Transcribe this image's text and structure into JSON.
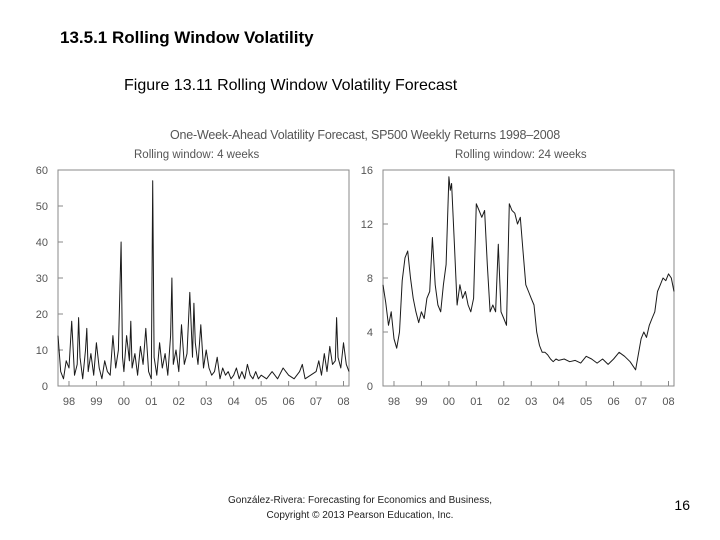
{
  "slide": {
    "section_title": "13.5.1  Rolling Window Volatility",
    "figure_caption": "Figure 13.11  Rolling Window Volatility Forecast",
    "footer_line1": "González-Rivera: Forecasting for Economics and Business,",
    "footer_line2": "Copyright © 2013 Pearson Education, Inc.",
    "page_number": "16"
  },
  "colors": {
    "axis": "#888888",
    "line": "#1a1a1a",
    "label": "#555555"
  },
  "chart_data": {
    "title": "One-Week-Ahead Volatility Forecast, SP500 Weekly Returns 1998–2008",
    "panels": [
      {
        "type": "line",
        "subtitle": "Rolling window: 4 weeks",
        "xlabel": "",
        "ylabel": "",
        "xlim": [
          1997.6,
          2008.2
        ],
        "ylim": [
          0,
          60
        ],
        "yticks": [
          0,
          10,
          20,
          30,
          40,
          50,
          60
        ],
        "ytick_labels": [
          "0",
          "10",
          "20",
          "30",
          "40",
          "50",
          "60"
        ],
        "xticks": [
          1998,
          1999,
          2000,
          2001,
          2002,
          2003,
          2004,
          2005,
          2006,
          2007,
          2008
        ],
        "xtick_labels": [
          "98",
          "99",
          "00",
          "01",
          "02",
          "03",
          "04",
          "05",
          "06",
          "07",
          "08"
        ],
        "x": [
          1997.6,
          1997.7,
          1997.8,
          1997.9,
          1998.0,
          1998.1,
          1998.2,
          1998.3,
          1998.35,
          1998.4,
          1998.5,
          1998.6,
          1998.65,
          1998.7,
          1998.8,
          1998.9,
          1999.0,
          1999.1,
          1999.2,
          1999.3,
          1999.4,
          1999.5,
          1999.6,
          1999.7,
          1999.8,
          1999.9,
          1999.95,
          2000.0,
          2000.1,
          2000.2,
          2000.25,
          2000.3,
          2000.4,
          2000.5,
          2000.6,
          2000.7,
          2000.8,
          2000.9,
          2001.0,
          2001.05,
          2001.1,
          2001.2,
          2001.3,
          2001.4,
          2001.5,
          2001.6,
          2001.7,
          2001.75,
          2001.8,
          2001.9,
          2002.0,
          2002.1,
          2002.2,
          2002.3,
          2002.4,
          2002.5,
          2002.55,
          2002.6,
          2002.7,
          2002.8,
          2002.9,
          2003.0,
          2003.1,
          2003.2,
          2003.3,
          2003.4,
          2003.5,
          2003.6,
          2003.7,
          2003.8,
          2003.9,
          2004.0,
          2004.1,
          2004.2,
          2004.3,
          2004.4,
          2004.5,
          2004.6,
          2004.7,
          2004.8,
          2004.9,
          2005.0,
          2005.2,
          2005.4,
          2005.6,
          2005.8,
          2006.0,
          2006.2,
          2006.4,
          2006.5,
          2006.6,
          2006.8,
          2007.0,
          2007.1,
          2007.2,
          2007.3,
          2007.4,
          2007.5,
          2007.6,
          2007.7,
          2007.75,
          2007.8,
          2007.9,
          2008.0,
          2008.1,
          2008.2
        ],
        "y": [
          14,
          4,
          2,
          7,
          5,
          18,
          3,
          6,
          19,
          8,
          2,
          10,
          16,
          4,
          9,
          3,
          12,
          5,
          2,
          7,
          4,
          3,
          14,
          5,
          10,
          40,
          8,
          4,
          14,
          7,
          18,
          5,
          9,
          3,
          11,
          6,
          16,
          4,
          2,
          57,
          8,
          3,
          12,
          5,
          9,
          3,
          14,
          30,
          6,
          10,
          4,
          17,
          6,
          9,
          26,
          8,
          23,
          12,
          6,
          17,
          5,
          10,
          5,
          3,
          4,
          8,
          2,
          5,
          3,
          4,
          2,
          3,
          5,
          2,
          4,
          2,
          6,
          3,
          2,
          4,
          2,
          3,
          2,
          4,
          2,
          5,
          3,
          2,
          4,
          6,
          2,
          3,
          4,
          7,
          3,
          9,
          4,
          11,
          6,
          7,
          19,
          8,
          5,
          12,
          6,
          4
        ]
      },
      {
        "type": "line",
        "subtitle": "Rolling window: 24 weeks",
        "xlabel": "",
        "ylabel": "",
        "xlim": [
          1997.6,
          2008.2
        ],
        "ylim": [
          0,
          16
        ],
        "yticks": [
          0,
          4,
          8,
          12,
          16
        ],
        "ytick_labels": [
          "0",
          "4",
          "8",
          "12",
          "16"
        ],
        "xticks": [
          1998,
          1999,
          2000,
          2001,
          2002,
          2003,
          2004,
          2005,
          2006,
          2007,
          2008
        ],
        "xtick_labels": [
          "98",
          "99",
          "00",
          "01",
          "02",
          "03",
          "04",
          "05",
          "06",
          "07",
          "08"
        ],
        "x": [
          1997.6,
          1997.7,
          1997.8,
          1997.9,
          1998.0,
          1998.1,
          1998.2,
          1998.3,
          1998.4,
          1998.5,
          1998.6,
          1998.7,
          1998.8,
          1998.9,
          1999.0,
          1999.1,
          1999.2,
          1999.3,
          1999.4,
          1999.5,
          1999.6,
          1999.7,
          1999.8,
          1999.9,
          2000.0,
          2000.05,
          2000.1,
          2000.2,
          2000.3,
          2000.4,
          2000.5,
          2000.6,
          2000.7,
          2000.8,
          2000.9,
          2001.0,
          2001.1,
          2001.2,
          2001.3,
          2001.4,
          2001.5,
          2001.6,
          2001.7,
          2001.8,
          2001.9,
          2002.0,
          2002.1,
          2002.2,
          2002.3,
          2002.4,
          2002.5,
          2002.6,
          2002.7,
          2002.8,
          2002.9,
          2003.0,
          2003.1,
          2003.2,
          2003.3,
          2003.4,
          2003.5,
          2003.6,
          2003.7,
          2003.8,
          2003.9,
          2004.0,
          2004.2,
          2004.4,
          2004.6,
          2004.8,
          2005.0,
          2005.2,
          2005.4,
          2005.6,
          2005.8,
          2006.0,
          2006.2,
          2006.4,
          2006.6,
          2006.8,
          2007.0,
          2007.1,
          2007.2,
          2007.3,
          2007.4,
          2007.5,
          2007.6,
          2007.7,
          2007.8,
          2007.9,
          2008.0,
          2008.1,
          2008.2
        ],
        "y": [
          7.5,
          6.2,
          4.5,
          5.5,
          3.5,
          2.8,
          4,
          7.8,
          9.5,
          10,
          8,
          6.5,
          5.5,
          4.7,
          5.5,
          5,
          6.5,
          7,
          11,
          7.5,
          6,
          5.5,
          7.5,
          9,
          15.5,
          14.5,
          15,
          10.5,
          6,
          7.5,
          6.5,
          7,
          6,
          5.5,
          6.5,
          13.5,
          13,
          12.5,
          13,
          9,
          5.5,
          6,
          5.5,
          10.5,
          5.5,
          5,
          4.5,
          13.5,
          13,
          12.8,
          12,
          12.5,
          10,
          7.5,
          7,
          6.5,
          6,
          4,
          3,
          2.5,
          2.5,
          2.3,
          2,
          1.8,
          2,
          1.9,
          2,
          1.8,
          1.9,
          1.7,
          2.2,
          2,
          1.7,
          2,
          1.6,
          2,
          2.5,
          2.2,
          1.8,
          1.2,
          3.5,
          4,
          3.6,
          4.5,
          5,
          5.5,
          7,
          7.5,
          8,
          7.8,
          8.3,
          8,
          7
        ]
      }
    ]
  }
}
